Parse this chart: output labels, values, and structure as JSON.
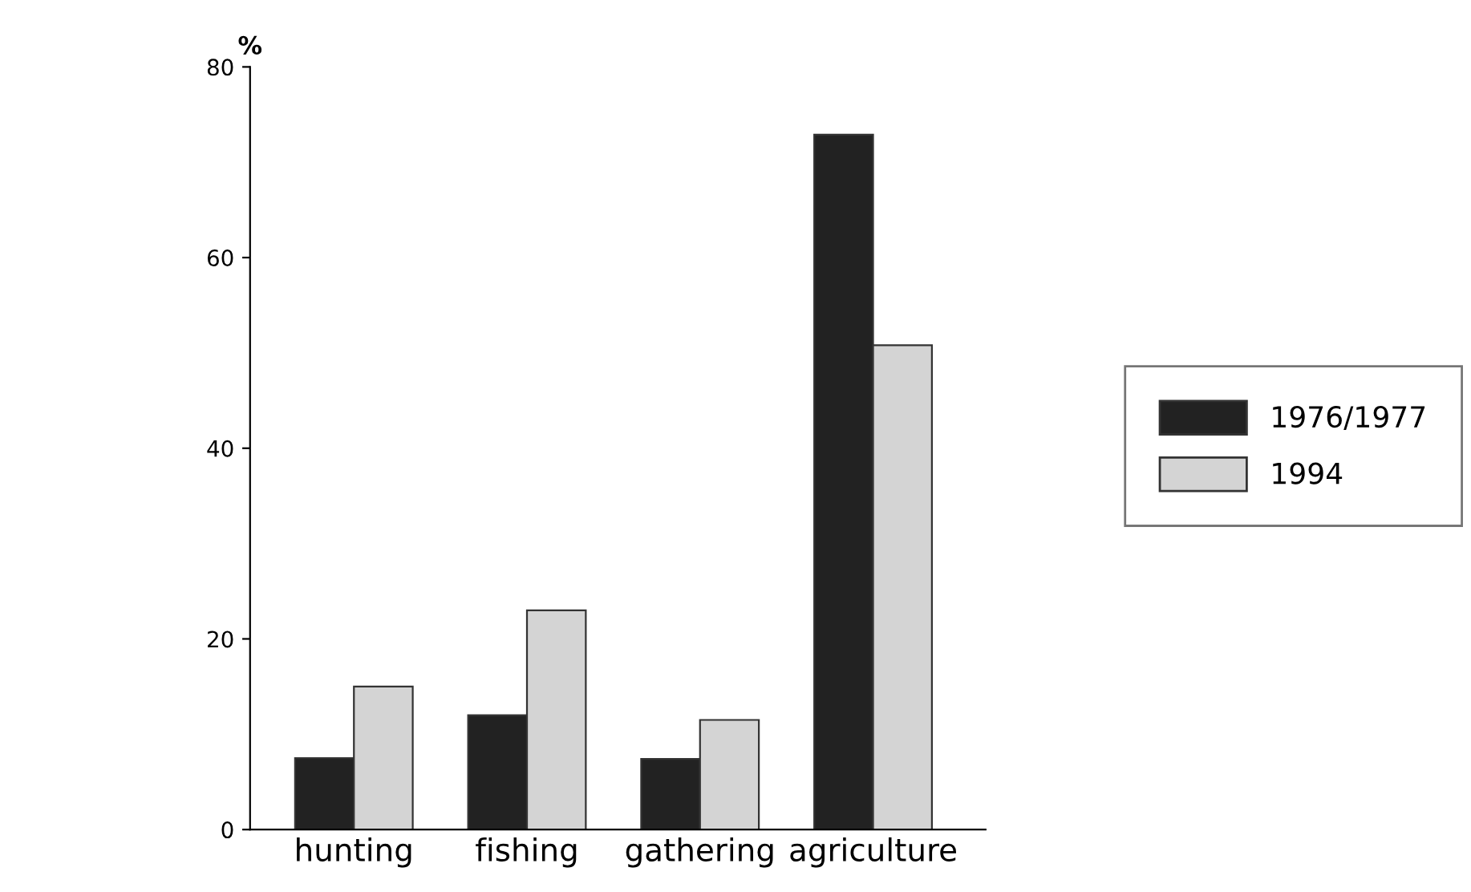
{
  "chart_data": {
    "type": "bar",
    "ylabel": "%",
    "categories": [
      "hunting",
      "fishing",
      "gathering",
      "agriculture"
    ],
    "series": [
      {
        "name": "1976/1977",
        "color": "#222222",
        "values": [
          7.5,
          12.0,
          7.4,
          72.9
        ]
      },
      {
        "name": "1994",
        "color": "#d4d4d4",
        "values": [
          15.0,
          23.0,
          11.5,
          50.8
        ]
      }
    ],
    "ylim": [
      0,
      80
    ],
    "yticks": [
      0,
      20,
      40,
      60,
      80
    ],
    "grid": false,
    "legend": "right"
  }
}
